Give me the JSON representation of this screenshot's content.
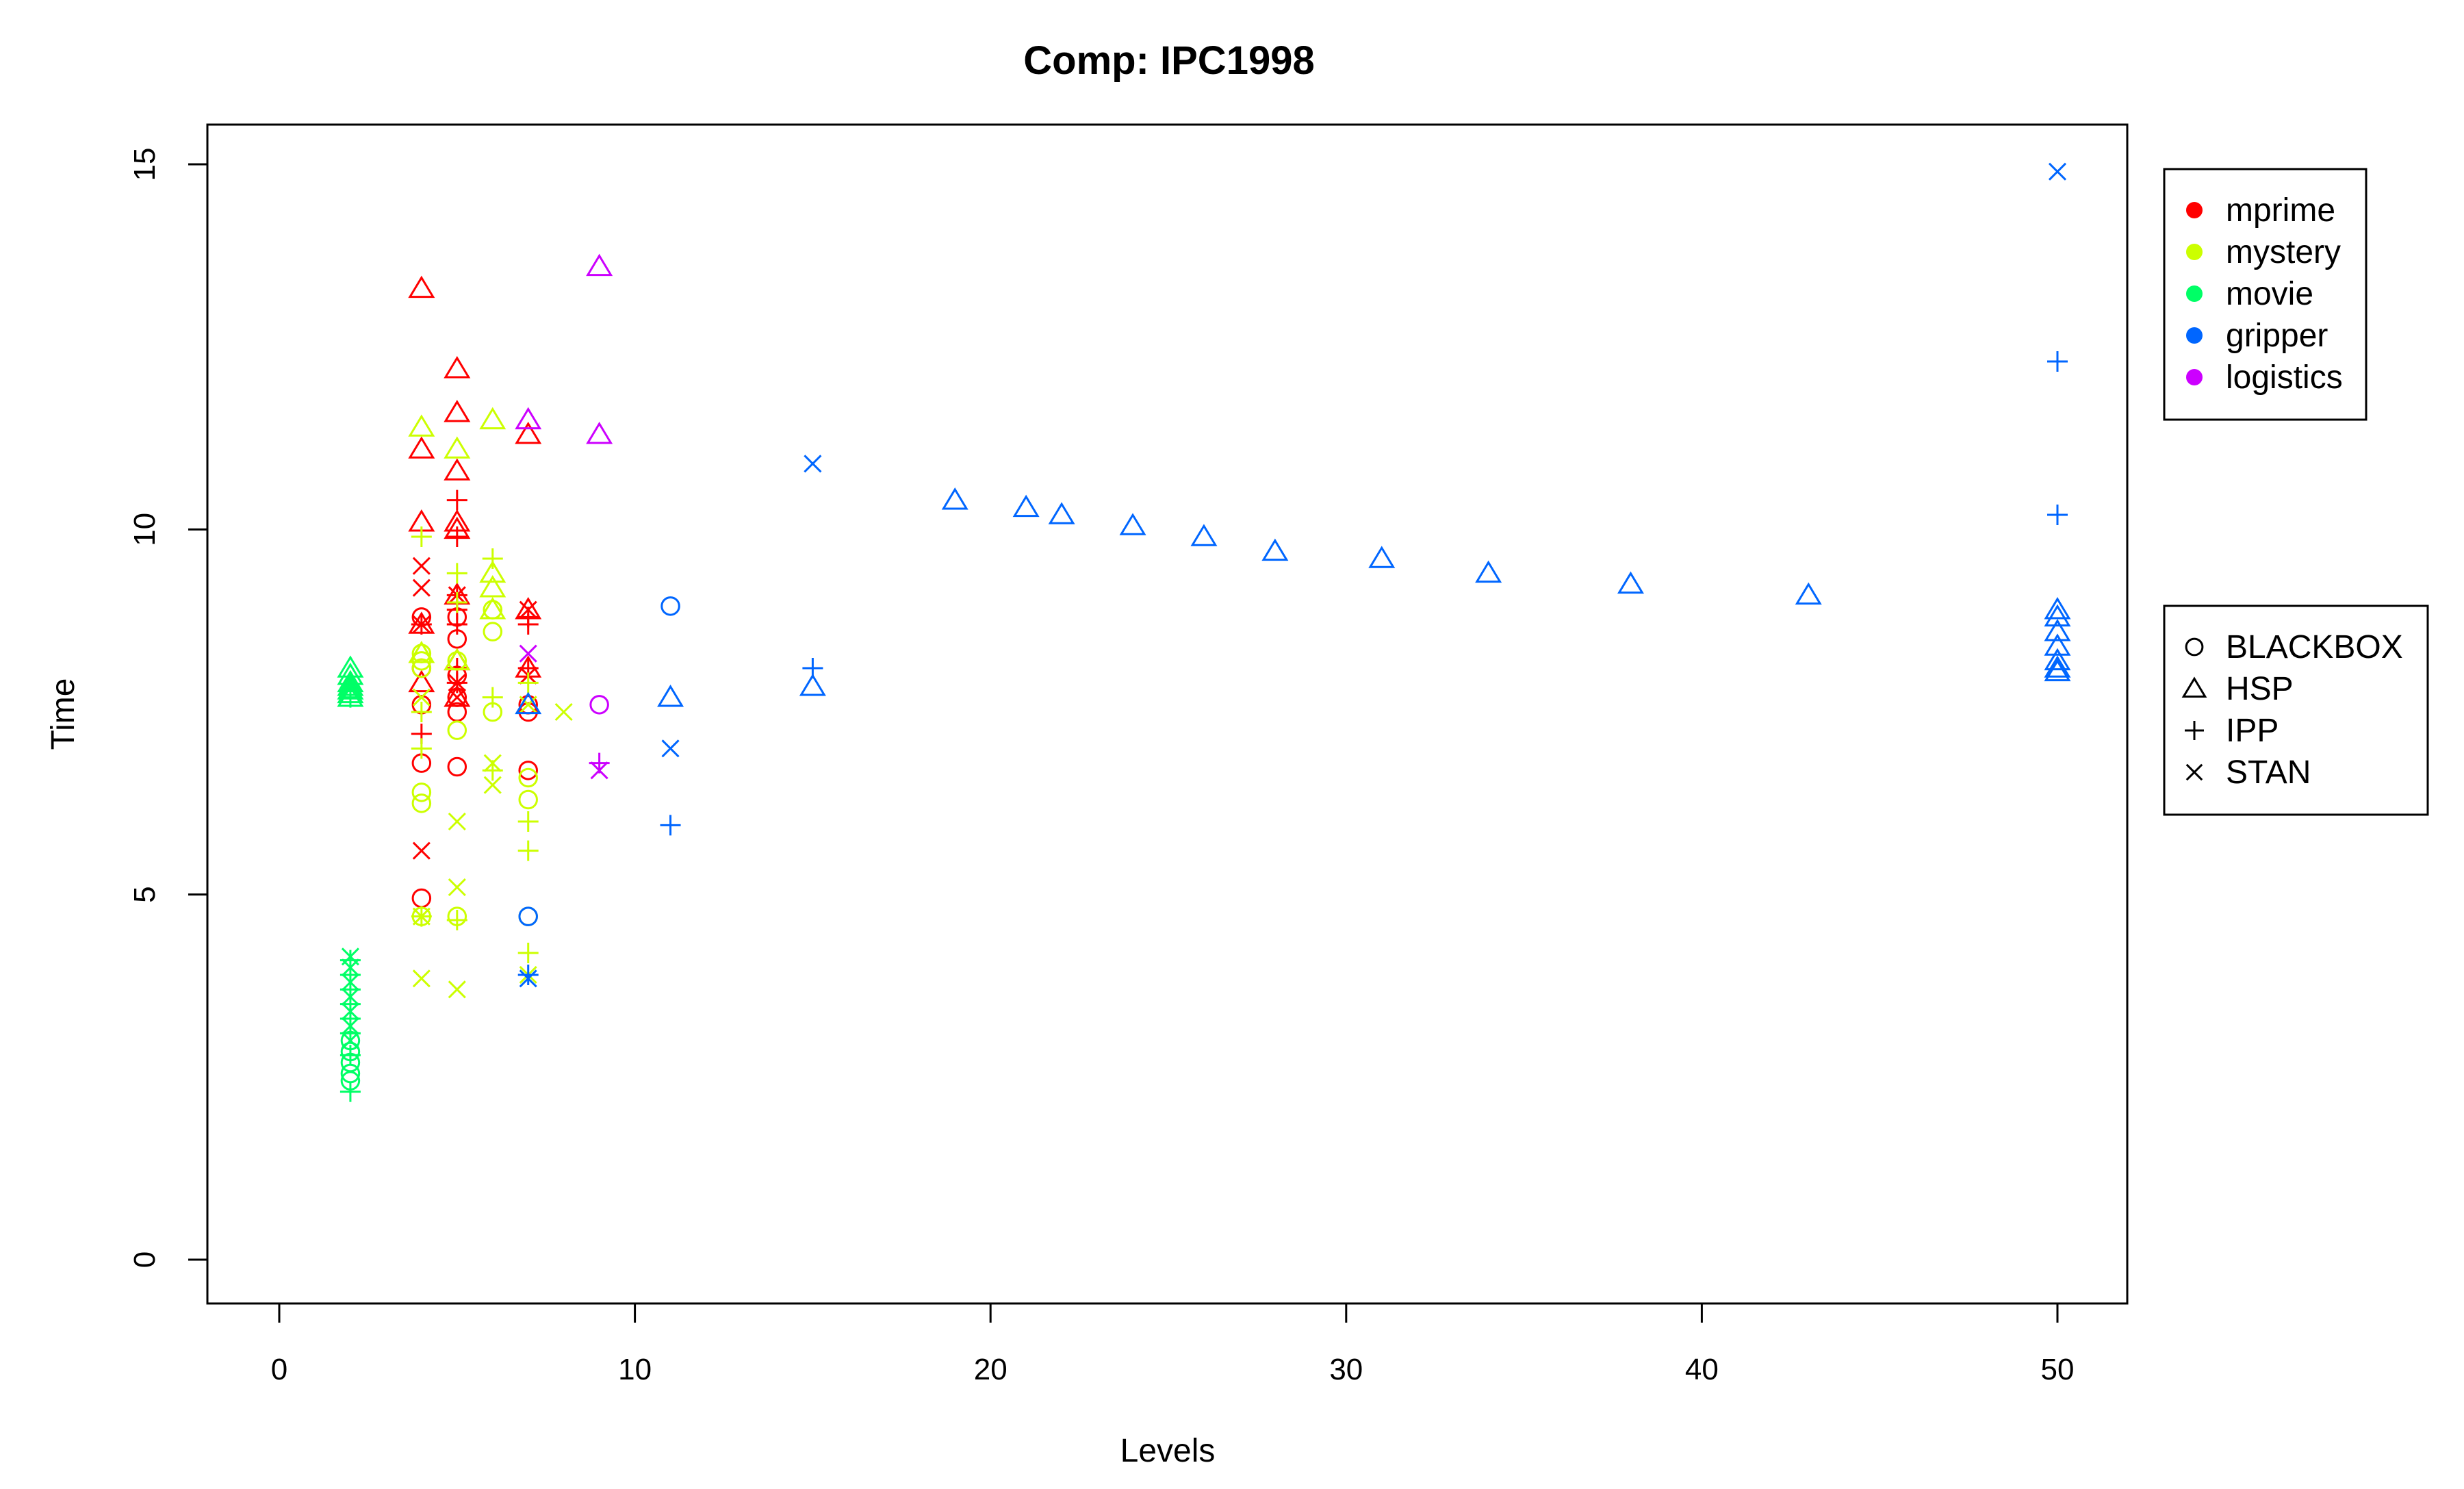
{
  "chart_data": {
    "type": "scatter",
    "title": "Comp: IPC1998",
    "xlabel": "Levels",
    "ylabel": "Time",
    "xlim": [
      -2,
      52
    ],
    "ylim": [
      -0.6,
      15.5
    ],
    "x_ticks": [
      0,
      10,
      20,
      30,
      40,
      50
    ],
    "y_ticks": [
      0,
      5,
      10,
      15
    ],
    "grid": false,
    "legend_color": {
      "placement": "right-top",
      "entries": [
        {
          "label": "mprime",
          "color": "#ff0000"
        },
        {
          "label": "mystery",
          "color": "#ccff00"
        },
        {
          "label": "movie",
          "color": "#00ff66"
        },
        {
          "label": "gripper",
          "color": "#0066ff"
        },
        {
          "label": "logistics",
          "color": "#cc00ff"
        }
      ]
    },
    "legend_shape": {
      "placement": "right-middle",
      "entries": [
        {
          "label": "BLACKBOX",
          "shape": "circle"
        },
        {
          "label": "HSP",
          "shape": "triangle"
        },
        {
          "label": "IPP",
          "shape": "plus"
        },
        {
          "label": "STAN",
          "shape": "cross"
        }
      ]
    },
    "series": [
      {
        "domain": "mprime",
        "planner": "HSP",
        "color": "#ff0000",
        "shape": "triangle",
        "points": [
          [
            4,
            13.3
          ],
          [
            4,
            11.1
          ],
          [
            4,
            10.1
          ],
          [
            4,
            8.7
          ],
          [
            4,
            7.9
          ],
          [
            5,
            12.2
          ],
          [
            5,
            11.6
          ],
          [
            5,
            10.8
          ],
          [
            5,
            10.1
          ],
          [
            5,
            10.0
          ],
          [
            5,
            9.1
          ],
          [
            5,
            8.2
          ],
          [
            5,
            7.7
          ],
          [
            7,
            11.3
          ],
          [
            7,
            8.9
          ],
          [
            7,
            8.1
          ]
        ]
      },
      {
        "domain": "mprime",
        "planner": "BLACKBOX",
        "color": "#ff0000",
        "shape": "circle",
        "points": [
          [
            4,
            8.8
          ],
          [
            4,
            8.1
          ],
          [
            4,
            7.6
          ],
          [
            4,
            6.8
          ],
          [
            4,
            4.95
          ],
          [
            5,
            8.8
          ],
          [
            5,
            8.5
          ],
          [
            5,
            8.0
          ],
          [
            5,
            7.7
          ],
          [
            5,
            7.5
          ],
          [
            5,
            6.75
          ],
          [
            7,
            7.6
          ],
          [
            7,
            7.5
          ],
          [
            7,
            6.7
          ]
        ]
      },
      {
        "domain": "mprime",
        "planner": "IPP",
        "color": "#ff0000",
        "shape": "plus",
        "points": [
          [
            4,
            8.7
          ],
          [
            4,
            7.2
          ],
          [
            5,
            10.4
          ],
          [
            5,
            9.9
          ],
          [
            5,
            9.1
          ],
          [
            5,
            8.9
          ],
          [
            5,
            8.7
          ],
          [
            5,
            8.1
          ],
          [
            5,
            7.9
          ],
          [
            7,
            8.8
          ],
          [
            7,
            8.7
          ],
          [
            7,
            8.1
          ]
        ]
      },
      {
        "domain": "mprime",
        "planner": "STAN",
        "color": "#ff0000",
        "shape": "cross",
        "points": [
          [
            4,
            9.5
          ],
          [
            4,
            9.2
          ],
          [
            4,
            8.7
          ],
          [
            4,
            5.6
          ],
          [
            5,
            9.1
          ],
          [
            5,
            7.9
          ],
          [
            5,
            7.7
          ],
          [
            7,
            8.9
          ],
          [
            7,
            8.0
          ]
        ]
      },
      {
        "domain": "mystery",
        "planner": "HSP",
        "color": "#ccff00",
        "shape": "triangle",
        "points": [
          [
            4,
            11.4
          ],
          [
            4,
            8.3
          ],
          [
            5,
            11.1
          ],
          [
            5,
            8.2
          ],
          [
            6,
            11.5
          ],
          [
            6,
            9.4
          ],
          [
            6,
            9.2
          ],
          [
            6,
            8.9
          ]
        ]
      },
      {
        "domain": "mystery",
        "planner": "BLACKBOX",
        "color": "#ccff00",
        "shape": "circle",
        "points": [
          [
            4,
            8.3
          ],
          [
            4,
            8.2
          ],
          [
            4,
            8.1
          ],
          [
            4,
            6.4
          ],
          [
            4,
            6.25
          ],
          [
            4,
            4.7
          ],
          [
            5,
            8.2
          ],
          [
            5,
            7.25
          ],
          [
            5,
            4.7
          ],
          [
            6,
            8.9
          ],
          [
            6,
            8.6
          ],
          [
            6,
            7.5
          ],
          [
            7,
            6.6
          ],
          [
            7,
            6.3
          ],
          [
            7,
            4.7
          ]
        ]
      },
      {
        "domain": "mystery",
        "planner": "IPP",
        "color": "#ccff00",
        "shape": "plus",
        "points": [
          [
            4,
            9.9
          ],
          [
            4,
            7.5
          ],
          [
            4,
            7.0
          ],
          [
            4,
            4.7
          ],
          [
            5,
            9.4
          ],
          [
            5,
            9.0
          ],
          [
            5,
            4.65
          ],
          [
            6,
            9.6
          ],
          [
            6,
            7.7
          ],
          [
            6,
            6.7
          ],
          [
            7,
            6.0
          ],
          [
            7,
            5.6
          ],
          [
            7,
            4.2
          ],
          [
            7,
            7.9
          ]
        ]
      },
      {
        "domain": "mystery",
        "planner": "STAN",
        "color": "#ccff00",
        "shape": "cross",
        "points": [
          [
            4,
            7.7
          ],
          [
            4,
            3.85
          ],
          [
            4,
            4.7
          ],
          [
            5,
            6.0
          ],
          [
            5,
            5.1
          ],
          [
            5,
            3.7
          ],
          [
            6,
            6.5
          ],
          [
            6,
            6.8
          ],
          [
            7,
            7.6
          ],
          [
            7,
            3.9
          ],
          [
            8,
            7.5
          ]
        ]
      },
      {
        "domain": "movie",
        "planner": "HSP",
        "color": "#00ff66",
        "shape": "triangle",
        "points": [
          [
            2,
            8.1
          ],
          [
            2,
            8.0
          ],
          [
            2,
            7.9
          ],
          [
            2,
            7.85
          ],
          [
            2,
            7.8
          ],
          [
            2,
            7.75
          ],
          [
            2,
            7.7
          ]
        ]
      },
      {
        "domain": "movie",
        "planner": "BLACKBOX",
        "color": "#00ff66",
        "shape": "circle",
        "points": [
          [
            2,
            2.45
          ],
          [
            2,
            2.55
          ],
          [
            2,
            2.7
          ],
          [
            2,
            2.85
          ],
          [
            2,
            3.0
          ]
        ]
      },
      {
        "domain": "movie",
        "planner": "IPP",
        "color": "#00ff66",
        "shape": "plus",
        "points": [
          [
            2,
            2.3
          ],
          [
            2,
            2.8
          ],
          [
            2,
            3.1
          ],
          [
            2,
            3.3
          ],
          [
            2,
            3.5
          ],
          [
            2,
            3.7
          ],
          [
            2,
            3.9
          ],
          [
            2,
            4.1
          ],
          [
            2,
            7.7
          ]
        ]
      },
      {
        "domain": "movie",
        "planner": "STAN",
        "color": "#00ff66",
        "shape": "cross",
        "points": [
          [
            2,
            3.0
          ],
          [
            2,
            3.2
          ],
          [
            2,
            3.4
          ],
          [
            2,
            3.6
          ],
          [
            2,
            3.8
          ],
          [
            2,
            4.0
          ],
          [
            2,
            4.15
          ]
        ]
      },
      {
        "domain": "gripper",
        "planner": "HSP",
        "color": "#0066ff",
        "shape": "triangle",
        "points": [
          [
            7,
            7.6
          ],
          [
            11,
            7.7
          ],
          [
            15,
            7.85
          ],
          [
            19,
            10.4
          ],
          [
            21,
            10.3
          ],
          [
            22,
            10.2
          ],
          [
            24,
            10.05
          ],
          [
            26,
            9.9
          ],
          [
            28,
            9.7
          ],
          [
            31,
            9.6
          ],
          [
            34,
            9.4
          ],
          [
            38,
            9.25
          ],
          [
            43,
            9.1
          ],
          [
            50,
            8.9
          ],
          [
            50,
            8.8
          ],
          [
            50,
            8.6
          ],
          [
            50,
            8.4
          ],
          [
            50,
            8.2
          ],
          [
            50,
            8.1
          ],
          [
            50,
            8.05
          ]
        ]
      },
      {
        "domain": "gripper",
        "planner": "BLACKBOX",
        "color": "#0066ff",
        "shape": "circle",
        "points": [
          [
            7,
            4.7
          ],
          [
            11,
            8.95
          ]
        ]
      },
      {
        "domain": "gripper",
        "planner": "IPP",
        "color": "#0066ff",
        "shape": "plus",
        "points": [
          [
            7,
            3.9
          ],
          [
            11,
            5.95
          ],
          [
            15,
            8.1
          ],
          [
            50,
            12.3
          ],
          [
            50,
            10.2
          ]
        ]
      },
      {
        "domain": "gripper",
        "planner": "STAN",
        "color": "#0066ff",
        "shape": "cross",
        "points": [
          [
            7,
            3.85
          ],
          [
            11,
            7.0
          ],
          [
            15,
            10.9
          ],
          [
            50,
            14.9
          ]
        ]
      },
      {
        "domain": "logistics",
        "planner": "HSP",
        "color": "#cc00ff",
        "shape": "triangle",
        "points": [
          [
            7,
            11.5
          ],
          [
            9,
            13.6
          ],
          [
            9,
            11.3
          ]
        ]
      },
      {
        "domain": "logistics",
        "planner": "BLACKBOX",
        "color": "#cc00ff",
        "shape": "circle",
        "points": [
          [
            9,
            7.6
          ]
        ]
      },
      {
        "domain": "logistics",
        "planner": "IPP",
        "color": "#cc00ff",
        "shape": "plus",
        "points": [
          [
            9,
            6.8
          ]
        ]
      },
      {
        "domain": "logistics",
        "planner": "STAN",
        "color": "#cc00ff",
        "shape": "cross",
        "points": [
          [
            7,
            8.3
          ],
          [
            9,
            6.7
          ]
        ]
      }
    ]
  }
}
